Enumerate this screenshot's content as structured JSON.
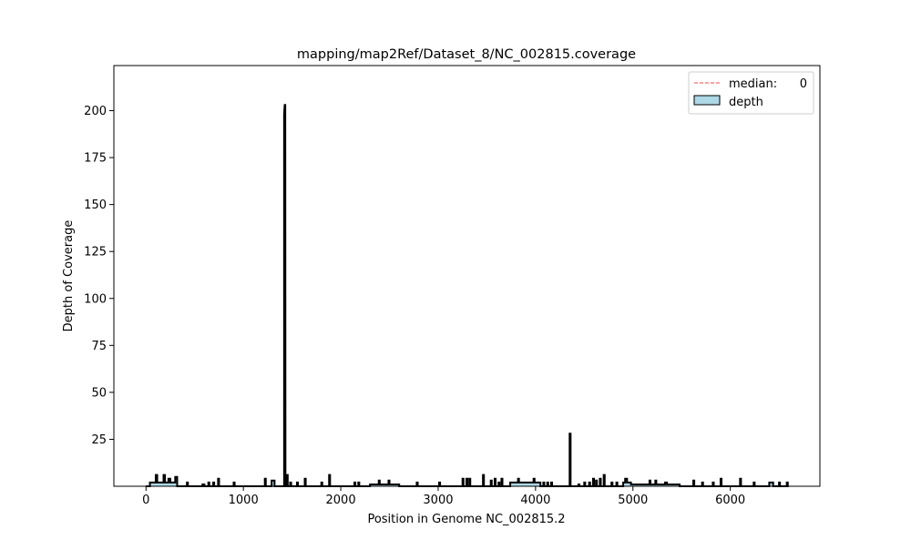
{
  "chart_data": {
    "type": "area",
    "title": "mapping/map2Ref/Dataset_8/NC_002815.coverage",
    "xlabel": "Position in Genome NC_002815.2",
    "ylabel": "Depth of Coverage",
    "xlim": [
      -330,
      6920
    ],
    "ylim": [
      0,
      224
    ],
    "x_ticks": [
      0,
      1000,
      2000,
      3000,
      4000,
      5000,
      6000
    ],
    "y_ticks": [
      25,
      50,
      75,
      100,
      125,
      150,
      175,
      200
    ],
    "grid": false,
    "legend": {
      "placement": "top-right",
      "entries": [
        {
          "label": "median:",
          "value": "0",
          "style": "dashed-line",
          "color": "#ff6b6b"
        },
        {
          "label": "depth",
          "style": "patch",
          "color": "#add8e6"
        }
      ]
    },
    "series": [
      {
        "name": "depth",
        "fill_color": "#add8e6",
        "edge_color": "#000000",
        "points": [
          [
            0,
            0
          ],
          [
            40,
            0
          ],
          [
            40,
            2
          ],
          [
            100,
            2
          ],
          [
            100,
            6
          ],
          [
            115,
            6
          ],
          [
            115,
            2
          ],
          [
            180,
            2
          ],
          [
            180,
            6
          ],
          [
            195,
            6
          ],
          [
            195,
            2
          ],
          [
            230,
            2
          ],
          [
            230,
            4
          ],
          [
            250,
            4
          ],
          [
            250,
            2
          ],
          [
            300,
            2
          ],
          [
            300,
            5
          ],
          [
            320,
            5
          ],
          [
            320,
            0
          ],
          [
            420,
            0
          ],
          [
            420,
            2
          ],
          [
            430,
            2
          ],
          [
            430,
            0
          ],
          [
            580,
            0
          ],
          [
            580,
            1
          ],
          [
            600,
            1
          ],
          [
            600,
            0
          ],
          [
            640,
            0
          ],
          [
            640,
            2
          ],
          [
            650,
            2
          ],
          [
            650,
            0
          ],
          [
            690,
            0
          ],
          [
            690,
            2
          ],
          [
            700,
            2
          ],
          [
            700,
            0
          ],
          [
            740,
            0
          ],
          [
            740,
            4
          ],
          [
            750,
            4
          ],
          [
            750,
            0
          ],
          [
            900,
            0
          ],
          [
            900,
            2
          ],
          [
            910,
            2
          ],
          [
            910,
            0
          ],
          [
            1220,
            0
          ],
          [
            1220,
            4
          ],
          [
            1230,
            4
          ],
          [
            1230,
            0
          ],
          [
            1290,
            0
          ],
          [
            1290,
            3
          ],
          [
            1320,
            3
          ],
          [
            1320,
            0
          ],
          [
            1418,
            0
          ],
          [
            1418,
            198
          ],
          [
            1424,
            203
          ],
          [
            1430,
            203
          ],
          [
            1432,
            0
          ],
          [
            1445,
            0
          ],
          [
            1445,
            6
          ],
          [
            1455,
            6
          ],
          [
            1455,
            0
          ],
          [
            1480,
            0
          ],
          [
            1480,
            2
          ],
          [
            1490,
            2
          ],
          [
            1490,
            0
          ],
          [
            1550,
            0
          ],
          [
            1550,
            2
          ],
          [
            1560,
            2
          ],
          [
            1560,
            0
          ],
          [
            1630,
            0
          ],
          [
            1630,
            4
          ],
          [
            1640,
            4
          ],
          [
            1640,
            0
          ],
          [
            1800,
            0
          ],
          [
            1800,
            2
          ],
          [
            1810,
            2
          ],
          [
            1810,
            0
          ],
          [
            1880,
            0
          ],
          [
            1880,
            6
          ],
          [
            1890,
            6
          ],
          [
            1890,
            0
          ],
          [
            2140,
            0
          ],
          [
            2140,
            2
          ],
          [
            2150,
            2
          ],
          [
            2150,
            0
          ],
          [
            2180,
            0
          ],
          [
            2180,
            2
          ],
          [
            2190,
            2
          ],
          [
            2190,
            0
          ],
          [
            2300,
            0
          ],
          [
            2300,
            1
          ],
          [
            2390,
            1
          ],
          [
            2390,
            3
          ],
          [
            2400,
            3
          ],
          [
            2400,
            1
          ],
          [
            2490,
            1
          ],
          [
            2490,
            3
          ],
          [
            2500,
            3
          ],
          [
            2500,
            1
          ],
          [
            2600,
            1
          ],
          [
            2600,
            0
          ],
          [
            2780,
            0
          ],
          [
            2780,
            2
          ],
          [
            2790,
            2
          ],
          [
            2790,
            0
          ],
          [
            3010,
            0
          ],
          [
            3010,
            2
          ],
          [
            3020,
            2
          ],
          [
            3020,
            0
          ],
          [
            3250,
            0
          ],
          [
            3250,
            4
          ],
          [
            3260,
            4
          ],
          [
            3260,
            0
          ],
          [
            3290,
            0
          ],
          [
            3290,
            4
          ],
          [
            3300,
            4
          ],
          [
            3300,
            0
          ],
          [
            3320,
            0
          ],
          [
            3320,
            4
          ],
          [
            3330,
            4
          ],
          [
            3330,
            0
          ],
          [
            3460,
            0
          ],
          [
            3460,
            6
          ],
          [
            3470,
            6
          ],
          [
            3470,
            0
          ],
          [
            3540,
            0
          ],
          [
            3540,
            3
          ],
          [
            3550,
            3
          ],
          [
            3550,
            0
          ],
          [
            3580,
            0
          ],
          [
            3580,
            4
          ],
          [
            3590,
            4
          ],
          [
            3590,
            0
          ],
          [
            3620,
            0
          ],
          [
            3620,
            2
          ],
          [
            3630,
            2
          ],
          [
            3630,
            0
          ],
          [
            3650,
            0
          ],
          [
            3650,
            4
          ],
          [
            3660,
            4
          ],
          [
            3660,
            0
          ],
          [
            3740,
            0
          ],
          [
            3740,
            2
          ],
          [
            3820,
            2
          ],
          [
            3820,
            4
          ],
          [
            3830,
            4
          ],
          [
            3830,
            2
          ],
          [
            3980,
            2
          ],
          [
            3980,
            4
          ],
          [
            3990,
            4
          ],
          [
            3990,
            2
          ],
          [
            4050,
            2
          ],
          [
            4050,
            0
          ],
          [
            4080,
            0
          ],
          [
            4080,
            2
          ],
          [
            4090,
            2
          ],
          [
            4090,
            0
          ],
          [
            4120,
            0
          ],
          [
            4120,
            2
          ],
          [
            4130,
            2
          ],
          [
            4130,
            0
          ],
          [
            4160,
            0
          ],
          [
            4160,
            2
          ],
          [
            4170,
            2
          ],
          [
            4170,
            0
          ],
          [
            4350,
            0
          ],
          [
            4350,
            28
          ],
          [
            4360,
            28
          ],
          [
            4360,
            0
          ],
          [
            4440,
            0
          ],
          [
            4440,
            1
          ],
          [
            4450,
            1
          ],
          [
            4450,
            0
          ],
          [
            4500,
            0
          ],
          [
            4500,
            2
          ],
          [
            4510,
            2
          ],
          [
            4510,
            0
          ],
          [
            4550,
            0
          ],
          [
            4550,
            2
          ],
          [
            4560,
            2
          ],
          [
            4560,
            0
          ],
          [
            4590,
            0
          ],
          [
            4590,
            4
          ],
          [
            4600,
            4
          ],
          [
            4600,
            0
          ],
          [
            4620,
            0
          ],
          [
            4620,
            3
          ],
          [
            4630,
            3
          ],
          [
            4630,
            0
          ],
          [
            4660,
            0
          ],
          [
            4660,
            4
          ],
          [
            4670,
            4
          ],
          [
            4670,
            0
          ],
          [
            4700,
            0
          ],
          [
            4700,
            6
          ],
          [
            4710,
            6
          ],
          [
            4710,
            0
          ],
          [
            4780,
            0
          ],
          [
            4780,
            2
          ],
          [
            4790,
            2
          ],
          [
            4790,
            0
          ],
          [
            4830,
            0
          ],
          [
            4830,
            2
          ],
          [
            4840,
            2
          ],
          [
            4840,
            0
          ],
          [
            4900,
            0
          ],
          [
            4900,
            2
          ],
          [
            4920,
            2
          ],
          [
            4920,
            4
          ],
          [
            4940,
            4
          ],
          [
            4940,
            2
          ],
          [
            4980,
            2
          ],
          [
            4980,
            1
          ],
          [
            5170,
            1
          ],
          [
            5170,
            3
          ],
          [
            5180,
            3
          ],
          [
            5180,
            1
          ],
          [
            5230,
            1
          ],
          [
            5230,
            3
          ],
          [
            5240,
            3
          ],
          [
            5240,
            1
          ],
          [
            5330,
            1
          ],
          [
            5330,
            2
          ],
          [
            5350,
            2
          ],
          [
            5350,
            1
          ],
          [
            5480,
            1
          ],
          [
            5480,
            0
          ],
          [
            5620,
            0
          ],
          [
            5620,
            3
          ],
          [
            5630,
            3
          ],
          [
            5630,
            0
          ],
          [
            5710,
            0
          ],
          [
            5710,
            2
          ],
          [
            5720,
            2
          ],
          [
            5720,
            0
          ],
          [
            5820,
            0
          ],
          [
            5820,
            2
          ],
          [
            5830,
            2
          ],
          [
            5830,
            0
          ],
          [
            5900,
            0
          ],
          [
            5900,
            4
          ],
          [
            5910,
            4
          ],
          [
            5910,
            0
          ],
          [
            6100,
            0
          ],
          [
            6100,
            4
          ],
          [
            6110,
            4
          ],
          [
            6110,
            0
          ],
          [
            6240,
            0
          ],
          [
            6240,
            2
          ],
          [
            6250,
            2
          ],
          [
            6250,
            0
          ],
          [
            6400,
            0
          ],
          [
            6400,
            2
          ],
          [
            6440,
            2
          ],
          [
            6440,
            0
          ],
          [
            6500,
            0
          ],
          [
            6500,
            2
          ],
          [
            6510,
            2
          ],
          [
            6510,
            0
          ],
          [
            6580,
            0
          ],
          [
            6580,
            2
          ],
          [
            6590,
            2
          ],
          [
            6590,
            0
          ],
          [
            6600,
            0
          ]
        ]
      }
    ]
  }
}
